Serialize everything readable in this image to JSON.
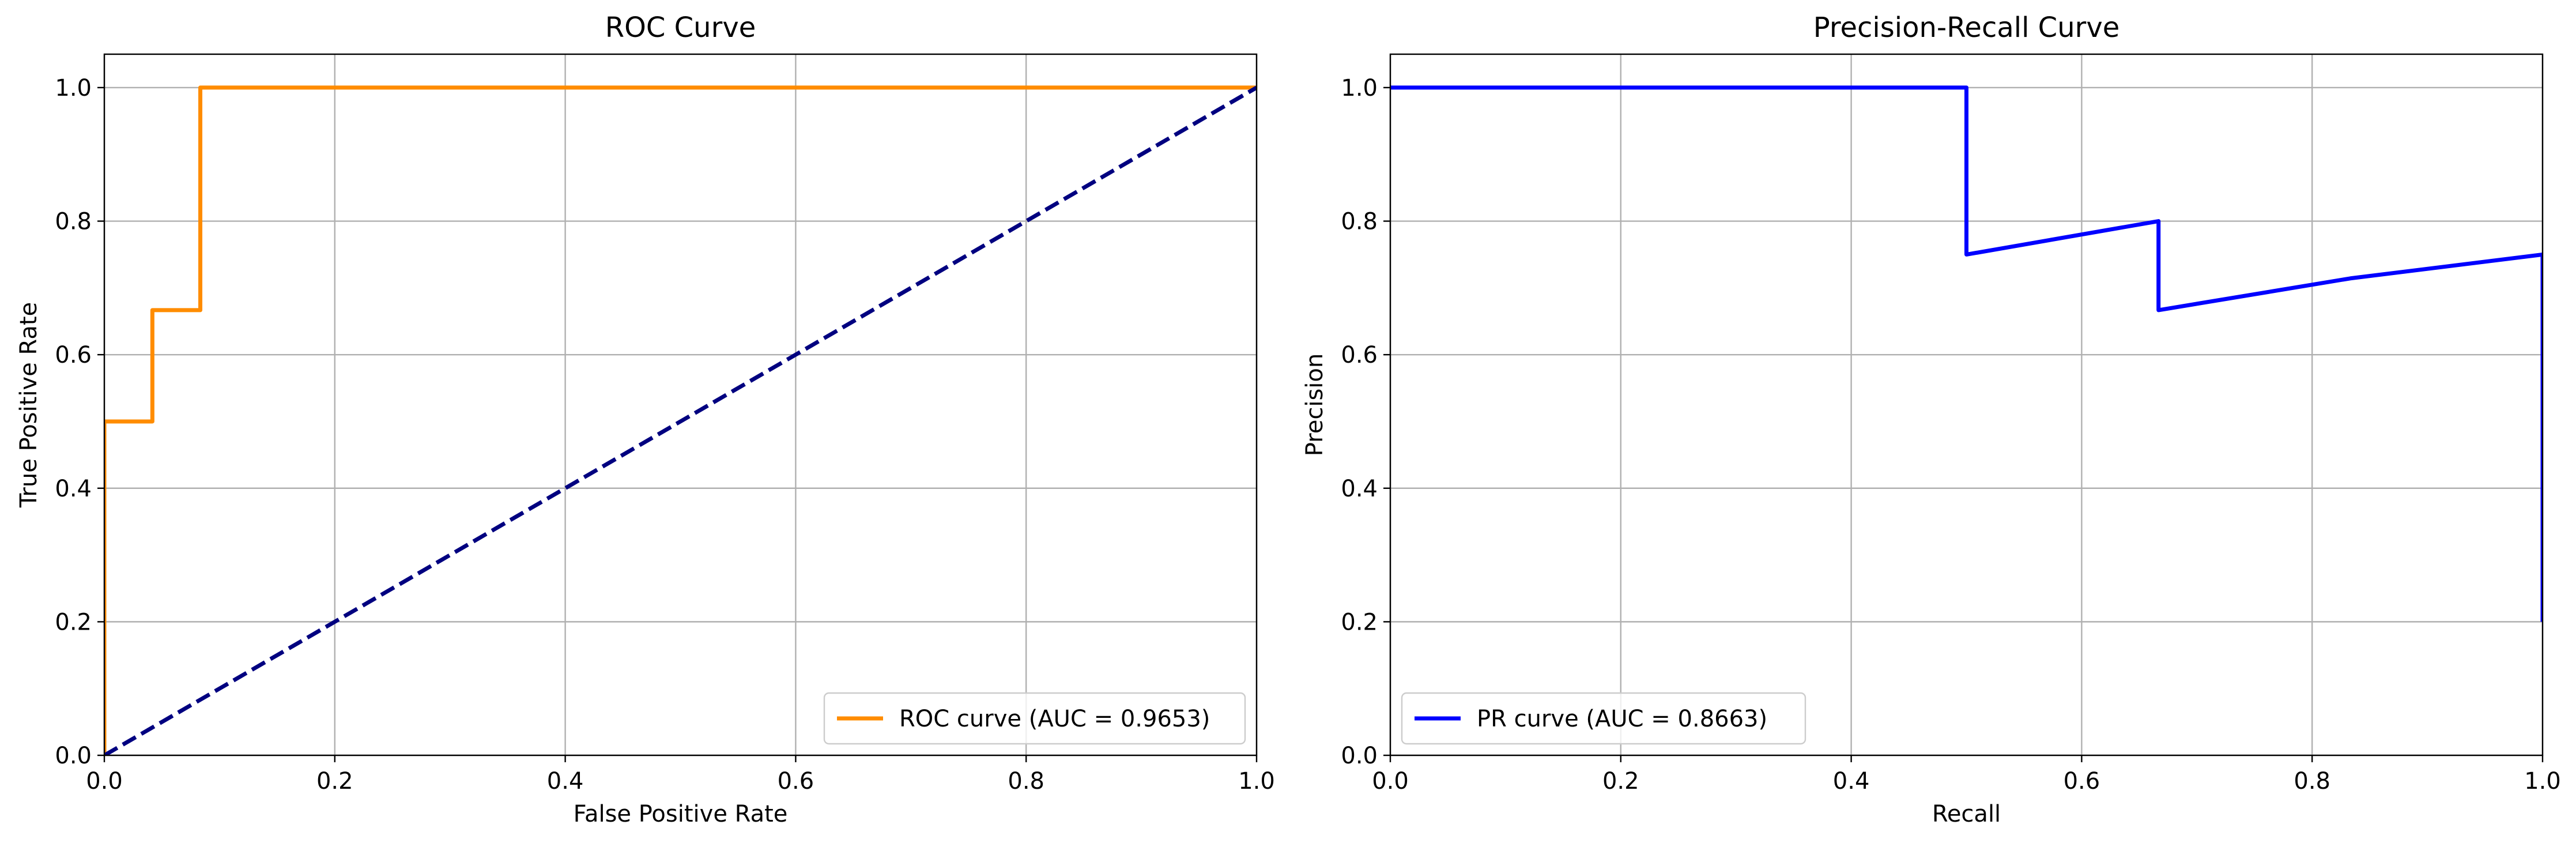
{
  "chart_data": [
    {
      "type": "line",
      "title": "ROC Curve",
      "xlabel": "False Positive Rate",
      "ylabel": "True Positive Rate",
      "xlim": [
        0.0,
        1.0
      ],
      "ylim": [
        0.0,
        1.05
      ],
      "xticks": [
        "0.0",
        "0.2",
        "0.4",
        "0.6",
        "0.8",
        "1.0"
      ],
      "yticks": [
        "0.0",
        "0.2",
        "0.4",
        "0.6",
        "0.8",
        "1.0"
      ],
      "grid": true,
      "legend_position": "lower-right",
      "series": [
        {
          "name": "ROC curve (AUC = 0.9653)",
          "color": "#ff8c00",
          "style": "solid",
          "x": [
            0.0,
            0.0,
            0.0417,
            0.0417,
            0.0833,
            0.0833,
            1.0
          ],
          "y": [
            0.0,
            0.5,
            0.5,
            0.6667,
            0.6667,
            1.0,
            1.0
          ]
        },
        {
          "name": "",
          "color": "#000080",
          "style": "dashed",
          "x": [
            0.0,
            1.0
          ],
          "y": [
            0.0,
            1.0
          ]
        }
      ]
    },
    {
      "type": "line",
      "title": "Precision-Recall Curve",
      "xlabel": "Recall",
      "ylabel": "Precision",
      "xlim": [
        0.0,
        1.0
      ],
      "ylim": [
        0.0,
        1.05
      ],
      "xticks": [
        "0.0",
        "0.2",
        "0.4",
        "0.6",
        "0.8",
        "1.0"
      ],
      "yticks": [
        "0.0",
        "0.2",
        "0.4",
        "0.6",
        "0.8",
        "1.0"
      ],
      "grid": true,
      "legend_position": "lower-left",
      "series": [
        {
          "name": "PR curve (AUC = 0.8663)",
          "color": "#0000ff",
          "style": "solid",
          "x": [
            0.0,
            0.5,
            0.5,
            0.6667,
            0.6667,
            0.8333,
            1.0,
            1.0
          ],
          "y": [
            1.0,
            1.0,
            0.75,
            0.8,
            0.6667,
            0.7143,
            0.75,
            0.2
          ]
        }
      ]
    }
  ]
}
